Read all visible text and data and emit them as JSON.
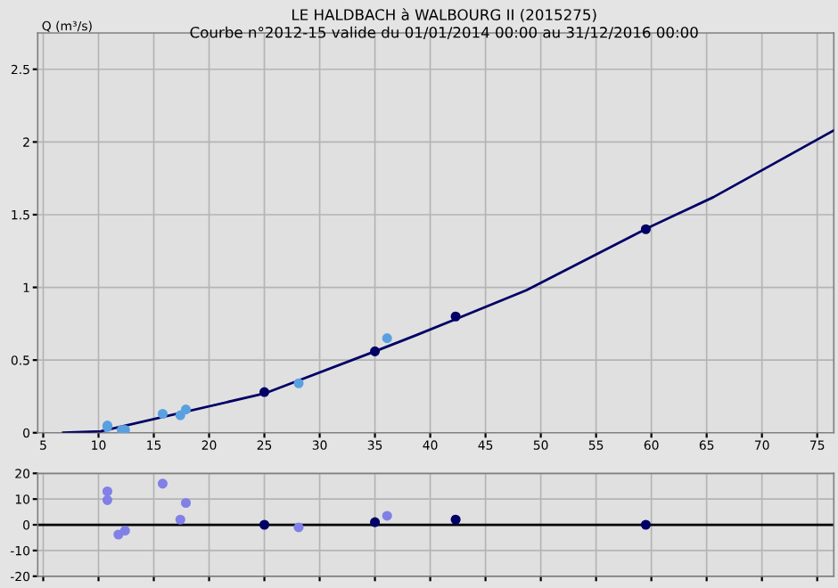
{
  "chart_data": [
    {
      "type": "line",
      "title": "LE HALDBACH à WALBOURG II (2015275)",
      "subtitle": "Courbe n°2012-15 valide du 01/01/2014 00:00 au 31/12/2016 00:00",
      "ylabel": "Q (m³/s)",
      "xlim": [
        4.5,
        76.5
      ],
      "ylim": [
        0,
        2.75
      ],
      "xticks": [
        5,
        10,
        15,
        20,
        25,
        30,
        35,
        40,
        45,
        50,
        55,
        60,
        65,
        70,
        75
      ],
      "yticks": [
        0,
        0.5,
        1,
        1.5,
        2,
        2.5
      ],
      "grid": true,
      "series": [
        {
          "color": "#000066",
          "x": [
            6.8,
            10.2,
            25.0,
            35.0,
            38.7,
            48.7,
            59.7,
            65.6,
            76.5
          ],
          "values": [
            0,
            0.01,
            0.27,
            0.56,
            0.67,
            0.98,
            1.41,
            1.62,
            2.08
          ],
          "marker": "none"
        },
        {
          "type": "scatter",
          "color": "#000066",
          "x": [
            25,
            35,
            42.3,
            59.5
          ],
          "values": [
            0.28,
            0.56,
            0.8,
            1.4
          ],
          "marker": "circle"
        },
        {
          "type": "scatter",
          "color": "#5aa0e0",
          "x": [
            10.8,
            10.8,
            12.1,
            12.4,
            15.8,
            17.4,
            17.9,
            28.1,
            36.1
          ],
          "values": [
            0.05,
            0.04,
            0.02,
            0.02,
            0.13,
            0.12,
            0.16,
            0.34,
            0.65
          ],
          "marker": "circle"
        }
      ]
    },
    {
      "type": "scatter",
      "xlim": [
        4.5,
        76.5
      ],
      "ylim": [
        -20,
        20
      ],
      "xticks": [
        5,
        10,
        15,
        20,
        25,
        30,
        35,
        40,
        45,
        50,
        55,
        60,
        65,
        70,
        75
      ],
      "yticks": [
        -20,
        -10,
        0,
        10,
        20
      ],
      "grid": true,
      "tick_labels": "y",
      "ref_lines": [
        {
          "axis": "y",
          "value": 0,
          "color": "#000000"
        }
      ],
      "series": [
        {
          "color": "#000066",
          "x": [
            25,
            35,
            42.3,
            59.5
          ],
          "values": [
            0,
            1,
            2,
            0
          ],
          "marker": "circle"
        },
        {
          "color": "#8080e8",
          "x": [
            10.8,
            10.8,
            11.8,
            12.4,
            15.8,
            17.4,
            17.9,
            28.1,
            36.1
          ],
          "values": [
            13,
            9.6,
            -3.8,
            -2.3,
            16,
            2,
            8.5,
            -1,
            3.5
          ],
          "marker": "circle"
        }
      ]
    }
  ]
}
